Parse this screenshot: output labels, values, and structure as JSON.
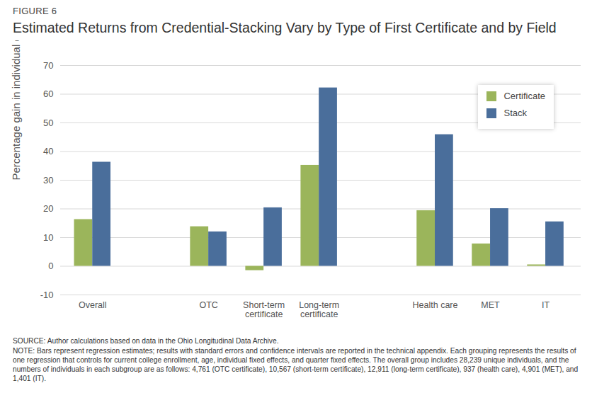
{
  "chart_data": {
    "type": "bar",
    "figure_label": "FIGURE 6",
    "title": "Estimated Returns from Credential-Stacking Vary by Type of First Certificate and by Field",
    "y_label": "Percentage gain in individual earnings",
    "categories": [
      "Overall",
      "OTC",
      "Short-term certificate",
      "Long-term certificate",
      "Health care",
      "MET",
      "IT"
    ],
    "series": [
      {
        "name": "Certificate",
        "color": "#9bb55b",
        "values": [
          16.3,
          13.8,
          -1.5,
          35.2,
          19.4,
          7.8,
          0.5
        ]
      },
      {
        "name": "Stack",
        "color": "#4a6e9b",
        "values": [
          36.3,
          12.0,
          20.4,
          62.2,
          45.9,
          20.1,
          15.5
        ]
      }
    ],
    "ylim": [
      -10,
      70
    ],
    "yticks": [
      -10,
      0,
      10,
      20,
      30,
      40,
      50,
      60,
      70
    ],
    "grid": true,
    "legend": "top-right",
    "source": "SOURCE: Author calculations based on data in the Ohio Longitudinal Data Archive.",
    "note": "NOTE: Bars represent regression estimates; results with standard errors and confidence intervals are reported in the technical appendix. Each grouping represents the results of one regression that controls for current college enrollment, age, individual fixed effects, and quarter fixed effects. The overall group includes 28,239 unique individuals, and the numbers of individuals in each subgroup are as follows: 4,761 (OTC certificate), 10,567 (short-term certificate), 12,911 (long-term certificate), 937 (health care), 4,901 (MET), and 1,401 (IT)."
  }
}
